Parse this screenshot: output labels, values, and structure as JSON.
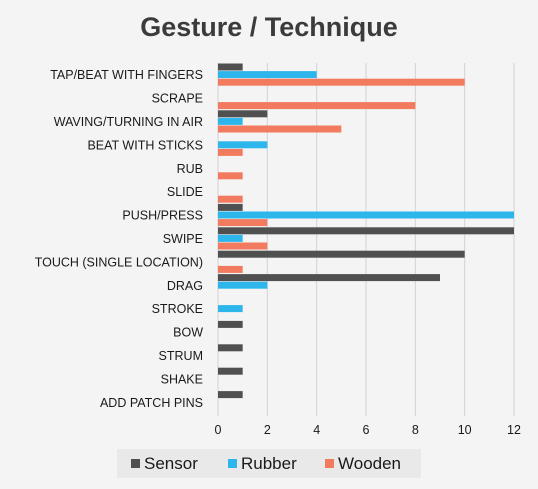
{
  "chart_data": {
    "type": "bar",
    "orientation": "horizontal",
    "title": "Gesture / Technique",
    "categories": [
      "TAP/BEAT WITH FINGERS",
      "SCRAPE",
      "WAVING/TURNING IN AIR",
      "BEAT WITH STICKS",
      "RUB",
      "SLIDE",
      "PUSH/PRESS",
      "SWIPE",
      "TOUCH (SINGLE LOCATION)",
      "DRAG",
      "STROKE",
      "BOW",
      "STRUM",
      "SHAKE",
      "ADD PATCH PINS"
    ],
    "series": [
      {
        "name": "Sensor",
        "color": "#505050",
        "values": [
          1,
          0,
          2,
          0,
          0,
          0,
          1,
          12,
          10,
          9,
          0,
          1,
          1,
          1,
          1
        ]
      },
      {
        "name": "Rubber",
        "color": "#2cb6ec",
        "values": [
          4,
          0,
          1,
          2,
          0,
          0,
          12,
          1,
          0,
          2,
          1,
          0,
          0,
          0,
          0
        ]
      },
      {
        "name": "Wooden",
        "color": "#f27a5e",
        "values": [
          10,
          8,
          5,
          1,
          1,
          1,
          2,
          2,
          1,
          0,
          0,
          0,
          0,
          0,
          0
        ]
      }
    ],
    "xlim": [
      0,
      12
    ],
    "xticks": [
      0,
      2,
      4,
      6,
      8,
      10,
      12
    ],
    "grid": true,
    "legend": "bottom"
  }
}
